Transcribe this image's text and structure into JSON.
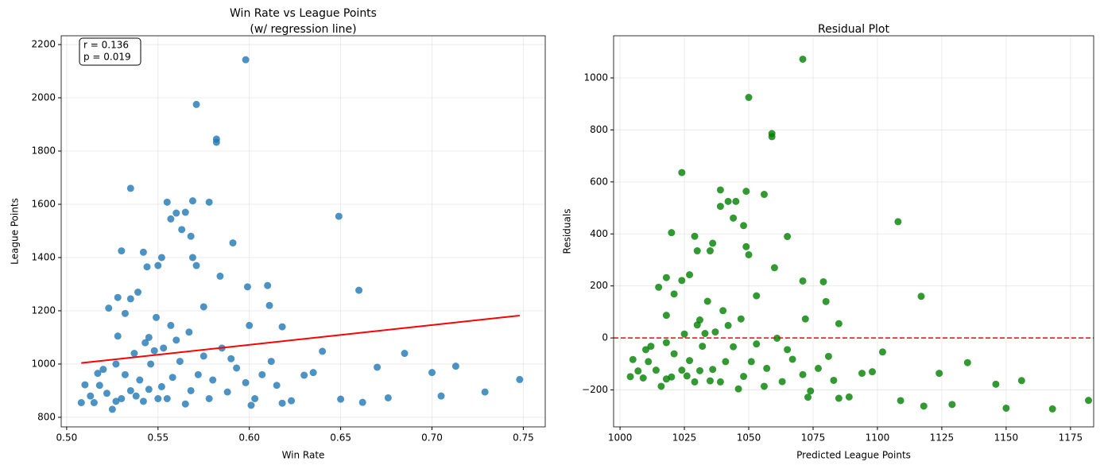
{
  "chart_data": [
    {
      "type": "scatter",
      "title": [
        "Win Rate vs League Points",
        "(w/ regression line)"
      ],
      "x_label": "Win Rate",
      "y_label": "League Points",
      "color": "#1f77b4",
      "grid": true,
      "xlim": [
        0.497,
        0.762
      ],
      "ylim": [
        764,
        2233
      ],
      "xticks": [
        {
          "value": 0.5,
          "label": "0.50"
        },
        0.55,
        {
          "value": 0.6,
          "label": "0.60"
        },
        0.65,
        {
          "value": 0.7,
          "label": "0.70"
        },
        0.75
      ],
      "yticks": [
        800,
        1000,
        1200,
        1400,
        1600,
        1800,
        2000,
        2200
      ],
      "annotation": [
        "r = 0.136",
        "p = 0.019"
      ],
      "regression_line": {
        "x": [
          0.508,
          0.748
        ],
        "y": [
          1004,
          1182
        ],
        "color": "red"
      },
      "x": [
        0.598,
        0.571,
        0.582,
        0.582,
        0.535,
        0.649,
        0.66,
        0.555,
        0.569,
        0.578,
        0.591,
        0.53,
        0.542,
        0.552,
        0.565,
        0.56,
        0.557,
        0.563,
        0.568,
        0.569,
        0.571,
        0.55,
        0.544,
        0.584,
        0.599,
        0.61,
        0.535,
        0.523,
        0.528,
        0.539,
        0.575,
        0.611,
        0.618,
        0.549,
        0.532,
        0.6,
        0.557,
        0.545,
        0.528,
        0.585,
        0.64,
        0.685,
        0.67,
        0.7,
        0.713,
        0.705,
        0.729,
        0.748,
        0.676,
        0.662,
        0.65,
        0.635,
        0.623,
        0.618,
        0.601,
        0.508,
        0.515,
        0.51,
        0.517,
        0.52,
        0.525,
        0.53,
        0.535,
        0.54,
        0.542,
        0.546,
        0.548,
        0.552,
        0.555,
        0.558,
        0.562,
        0.565,
        0.568,
        0.572,
        0.575,
        0.578,
        0.58,
        0.588,
        0.593,
        0.598,
        0.603,
        0.607,
        0.612,
        0.615,
        0.527,
        0.522,
        0.513,
        0.518,
        0.532,
        0.537,
        0.543,
        0.553,
        0.56,
        0.567,
        0.59,
        0.545,
        0.55,
        0.527,
        0.538,
        0.63
      ],
      "y": [
        2143,
        1975,
        1845,
        1833,
        1660,
        1555,
        1277,
        1608,
        1613,
        1608,
        1455,
        1425,
        1420,
        1400,
        1570,
        1567,
        1545,
        1505,
        1480,
        1400,
        1370,
        1370,
        1365,
        1330,
        1290,
        1295,
        1245,
        1210,
        1250,
        1270,
        1215,
        1220,
        1140,
        1175,
        1190,
        1145,
        1145,
        1100,
        1105,
        1060,
        1048,
        1040,
        988,
        968,
        992,
        880,
        895,
        942,
        873,
        856,
        868,
        968,
        862,
        853,
        845,
        855,
        855,
        922,
        965,
        980,
        830,
        870,
        900,
        940,
        860,
        1000,
        1050,
        915,
        870,
        950,
        1010,
        850,
        900,
        960,
        1030,
        870,
        940,
        895,
        985,
        930,
        870,
        960,
        1010,
        920,
        1000,
        890,
        880,
        920,
        960,
        1040,
        1080,
        1060,
        1090,
        1120,
        1020,
        905,
        870,
        860,
        880,
        958
      ]
    },
    {
      "type": "scatter",
      "title": [
        "Residual Plot"
      ],
      "x_label": "Predicted League Points",
      "y_label": "Residuals",
      "color": "green",
      "grid": true,
      "xlim": [
        997.5,
        1184
      ],
      "ylim": [
        -342,
        1162
      ],
      "xticks": [
        1000,
        1025,
        1050,
        1075,
        1100,
        1125,
        1150,
        1175
      ],
      "yticks": [
        {
          "value": -200,
          "label": "−200"
        },
        0,
        200,
        400,
        600,
        800,
        1000
      ],
      "reference_line": {
        "y": 0,
        "color": "red",
        "style": "dashed"
      },
      "x": [
        1071,
        1050,
        1059,
        1059,
        1024,
        1108,
        1117,
        1039,
        1049,
        1056,
        1065,
        1020,
        1029,
        1036,
        1045,
        1042,
        1039,
        1044,
        1048,
        1049,
        1050,
        1035,
        1030,
        1060,
        1071,
        1079,
        1024,
        1015,
        1018,
        1027,
        1053,
        1080,
        1085,
        1034,
        1021,
        1072,
        1040,
        1031,
        1018,
        1061,
        1102,
        1135,
        1124,
        1146,
        1156,
        1150,
        1168,
        1182,
        1129,
        1118,
        1109,
        1098,
        1089,
        1085,
        1073,
        1004,
        1009,
        1005,
        1010,
        1012,
        1016,
        1020,
        1024,
        1027,
        1029,
        1032,
        1033,
        1036,
        1039,
        1041,
        1044,
        1046,
        1048,
        1051,
        1053,
        1056,
        1057,
        1063,
        1067,
        1071,
        1074,
        1077,
        1081,
        1083,
        1018,
        1014,
        1007,
        1011,
        1021,
        1025,
        1030,
        1037,
        1042,
        1047,
        1065,
        1031,
        1035,
        1018,
        1026,
        1094
      ],
      "y": [
        1072,
        925,
        786,
        774,
        636,
        447,
        160,
        569,
        564,
        552,
        390,
        405,
        391,
        364,
        525,
        525,
        506,
        461,
        432,
        351,
        320,
        335,
        335,
        270,
        219,
        216,
        221,
        195,
        232,
        243,
        162,
        140,
        55,
        141,
        169,
        73,
        105,
        69,
        87,
        -1,
        -54,
        -95,
        -136,
        -178,
        -164,
        -270,
        -273,
        -240,
        -256,
        -262,
        -241,
        -130,
        -227,
        -232,
        -228,
        -149,
        -154,
        -83,
        -45,
        -32,
        -186,
        -150,
        -124,
        -87,
        -169,
        -32,
        17,
        -121,
        -169,
        -91,
        -34,
        -196,
        -148,
        -91,
        -23,
        -186,
        -117,
        -168,
        -82,
        -141,
        -204,
        -117,
        -71,
        -163,
        -18,
        -124,
        -127,
        -91,
        -61,
        15,
        50,
        23,
        48,
        73,
        -45,
        -126,
        -165,
        -158,
        -146,
        -136
      ]
    }
  ]
}
